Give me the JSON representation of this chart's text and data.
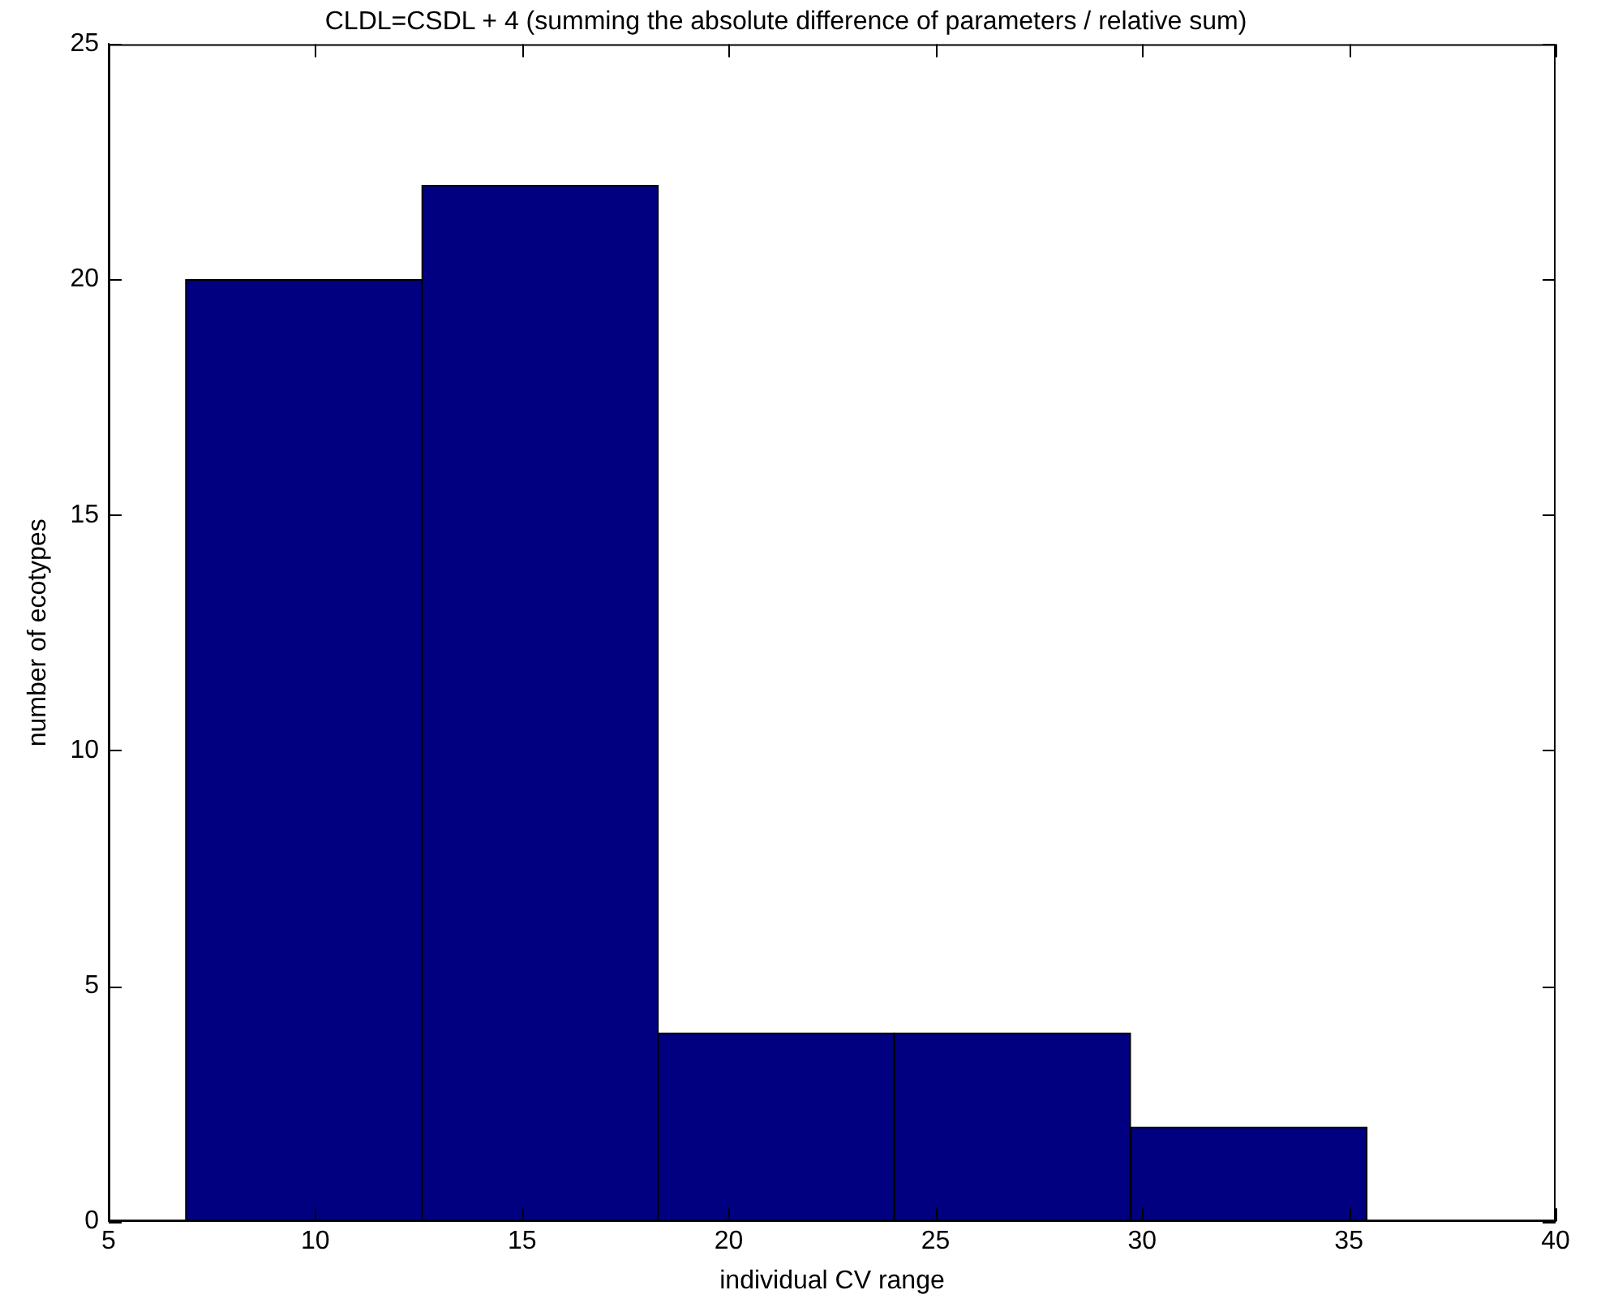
{
  "chart_data": {
    "type": "histogram",
    "title": "CLDL=CSDL + 4 (summing the absolute difference of parameters / relative sum)",
    "xlabel": "individual CV range",
    "ylabel": "number of ecotypes",
    "bins": [
      6.86,
      12.58,
      18.29,
      24.0,
      29.72,
      35.44
    ],
    "values": [
      20,
      22,
      4,
      4,
      2
    ],
    "color": "#000080",
    "xlim": [
      5,
      40
    ],
    "xticks": [
      5,
      10,
      15,
      20,
      25,
      30,
      35,
      40
    ],
    "ylim": [
      0,
      25
    ],
    "yticks": [
      0,
      5,
      10,
      15,
      20,
      25
    ],
    "grid": false,
    "legend": false
  }
}
